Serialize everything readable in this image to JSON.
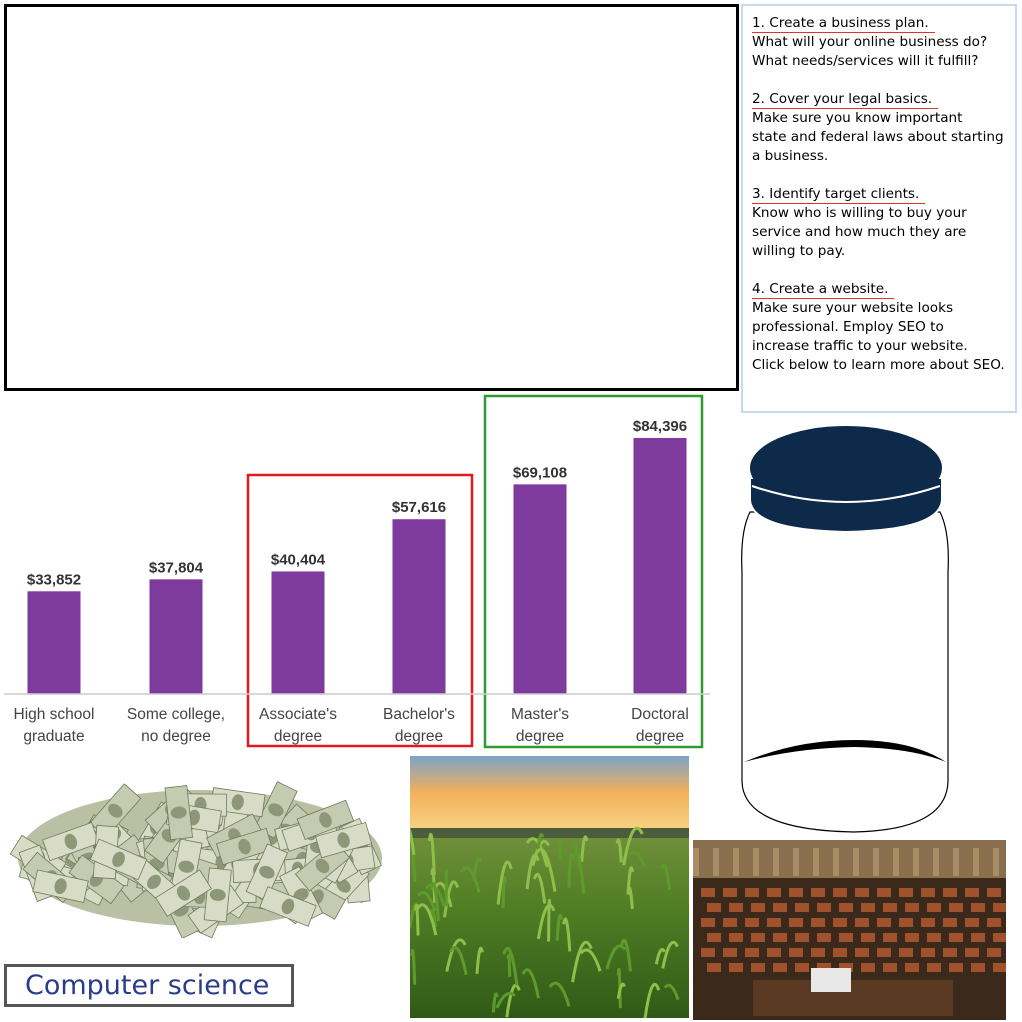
{
  "steps": [
    {
      "title": "1. Create a business plan.",
      "body": "What will your online business do?\nWhat needs/services will it fulfill?"
    },
    {
      "title": "2. Cover your legal basics.",
      "body": "Make sure you know important\nstate and federal laws about starting\na business."
    },
    {
      "title": "3. Identify target clients.",
      "body": "Know who is willing to buy your\nservice and how much they are\nwilling to pay."
    },
    {
      "title": "4. Create a website.",
      "body": "Make sure your website looks\nprofessional.  Employ SEO to\nincrease traffic to your website.\nClick below to learn more about SEO."
    }
  ],
  "chart_data": {
    "type": "bar",
    "categories": [
      [
        "High school",
        "graduate"
      ],
      [
        "Some college,",
        "no degree"
      ],
      [
        "Associate's",
        "degree"
      ],
      [
        "Bachelor's",
        "degree"
      ],
      [
        "Master's",
        "degree"
      ],
      [
        "Doctoral",
        "degree"
      ]
    ],
    "values": [
      33852,
      37804,
      40404,
      57616,
      69108,
      84396
    ],
    "value_labels": [
      "$33,852",
      "$37,804",
      "$40,404",
      "$57,616",
      "$69,108",
      "$84,396"
    ],
    "ylim": [
      0,
      90000
    ],
    "bar_color": "#7e3b9d",
    "highlight_groups": [
      {
        "categories": [
          2,
          3
        ],
        "color": "#e11b1b"
      },
      {
        "categories": [
          4,
          5
        ],
        "color": "#2f9a2f"
      }
    ]
  },
  "label_box": {
    "text": "Computer science"
  },
  "icons": {
    "jar": "glass-jar-icon",
    "money": "money-pile-image",
    "field": "cornfield-image",
    "chamber": "legislative-chamber-image"
  },
  "colors": {
    "jar_lid": "#0e2a4b",
    "text_underline": "#dd3333",
    "panel_border": "#c6d9ef"
  }
}
